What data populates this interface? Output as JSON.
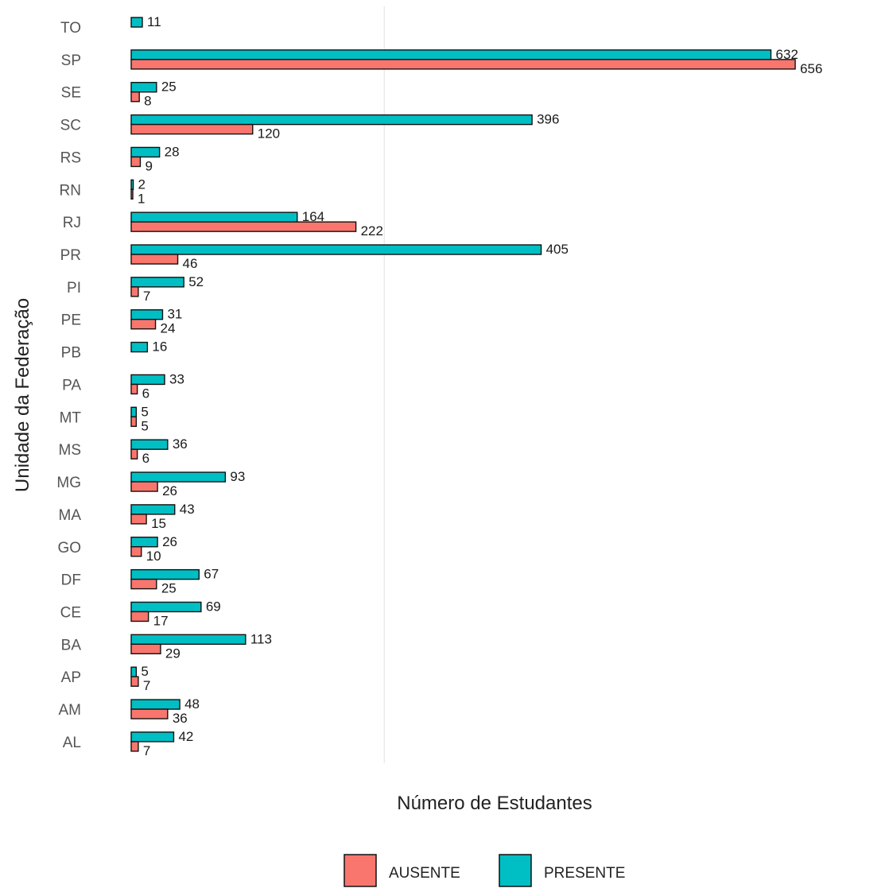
{
  "chart_data": {
    "type": "bar",
    "orientation": "horizontal",
    "xlabel": "Número de Estudantes",
    "ylabel": "Unidade da Federação",
    "categories": [
      "TO",
      "SP",
      "SE",
      "SC",
      "RS",
      "RN",
      "RJ",
      "PR",
      "PI",
      "PE",
      "PB",
      "PA",
      "MT",
      "MS",
      "MG",
      "MA",
      "GO",
      "DF",
      "CE",
      "BA",
      "AP",
      "AM",
      "AL"
    ],
    "series": [
      {
        "name": "PRESENTE",
        "color": "#00BFC4",
        "values": [
          11,
          632,
          25,
          396,
          28,
          2,
          164,
          405,
          52,
          31,
          16,
          33,
          5,
          36,
          93,
          43,
          26,
          67,
          69,
          113,
          5,
          48,
          42
        ]
      },
      {
        "name": "AUSENTE",
        "color": "#F8766D",
        "values": [
          null,
          656,
          8,
          120,
          9,
          1,
          222,
          46,
          7,
          24,
          null,
          6,
          5,
          6,
          26,
          15,
          10,
          25,
          17,
          29,
          7,
          36,
          7
        ]
      }
    ],
    "xlim": [
      0,
      680
    ],
    "grid": true,
    "legend_position": "bottom"
  },
  "legend": {
    "items": [
      {
        "label": "AUSENTE",
        "color": "#F8766D"
      },
      {
        "label": "PRESENTE",
        "color": "#00BFC4"
      }
    ]
  }
}
